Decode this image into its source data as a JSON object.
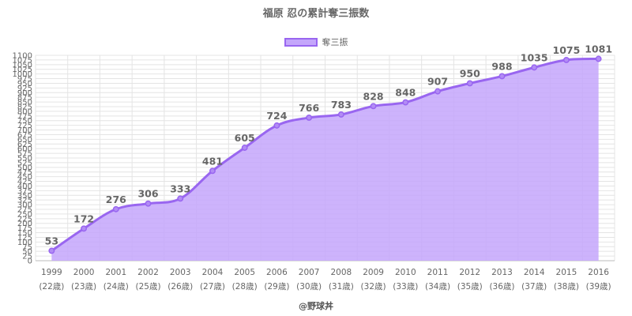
{
  "title": "福原 忍の累計奪三振数",
  "legend": {
    "label": "奪三振"
  },
  "credit": "@野球丼",
  "colors": {
    "line": "#9966f0",
    "fill": "#c4a6fb",
    "grid": "#e4e4e4",
    "text": "#666666"
  },
  "chart_data": {
    "type": "area",
    "title": "福原 忍の累計奪三振数",
    "categories": [
      "1999",
      "2000",
      "2001",
      "2002",
      "2003",
      "2004",
      "2005",
      "2006",
      "2007",
      "2008",
      "2009",
      "2010",
      "2011",
      "2012",
      "2013",
      "2014",
      "2015",
      "2016"
    ],
    "ages": [
      "(22歳)",
      "(23歳)",
      "(24歳)",
      "(25歳)",
      "(26歳)",
      "(27歳)",
      "(28歳)",
      "(29歳)",
      "(30歳)",
      "(31歳)",
      "(32歳)",
      "(33歳)",
      "(34歳)",
      "(35歳)",
      "(36歳)",
      "(37歳)",
      "(38歳)",
      "(39歳)"
    ],
    "series": [
      {
        "name": "奪三振",
        "values": [
          53,
          172,
          276,
          306,
          333,
          481,
          605,
          724,
          766,
          783,
          828,
          848,
          907,
          950,
          988,
          1035,
          1075,
          1081
        ]
      }
    ],
    "ylim": [
      0,
      1100
    ],
    "ytick_step": 25,
    "grid": true,
    "legend_position": "top-center"
  }
}
